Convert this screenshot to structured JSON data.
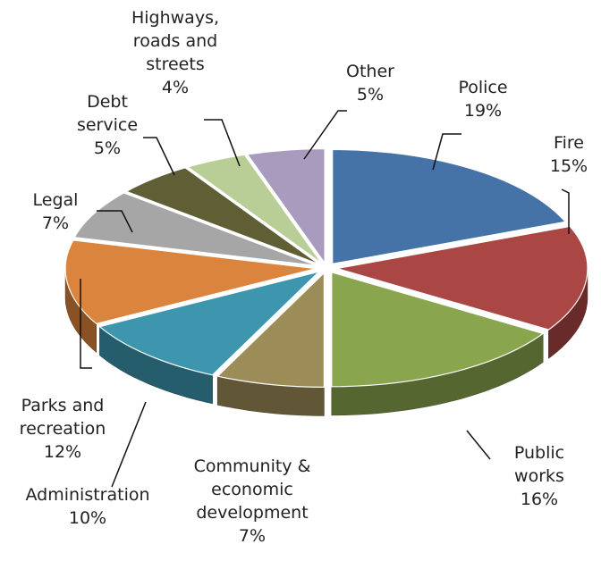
{
  "chart_data": {
    "type": "pie",
    "title": "",
    "legend": "none",
    "slices": [
      {
        "label": [
          "Police",
          "19%"
        ],
        "value": 19,
        "color": "#4572A7"
      },
      {
        "label": [
          "Fire",
          "15%"
        ],
        "value": 15,
        "color": "#AA4643"
      },
      {
        "label": [
          "Public",
          "works",
          "16%"
        ],
        "value": 16,
        "color": "#89A54E"
      },
      {
        "label": [
          "Community &",
          "economic",
          "development",
          "7%"
        ],
        "value": 7,
        "color": "#9C8D58"
      },
      {
        "label": [
          "Administration",
          "10%"
        ],
        "value": 10,
        "color": "#3D96AE"
      },
      {
        "label": [
          "Parks and",
          "recreation",
          "12%"
        ],
        "value": 12,
        "color": "#DB843D"
      },
      {
        "label": [
          "Legal",
          "7%"
        ],
        "value": 7,
        "color": "#A6A6A6"
      },
      {
        "label": [
          "Debt",
          "service",
          "5%"
        ],
        "value": 5,
        "color": "#5F5E35"
      },
      {
        "label": [
          "Highways,",
          "roads and",
          "streets",
          "4%"
        ],
        "value": 4,
        "color": "#B9CD96"
      },
      {
        "label": [
          "Other",
          "5%"
        ],
        "value": 5,
        "color": "#A99BBD"
      }
    ]
  }
}
